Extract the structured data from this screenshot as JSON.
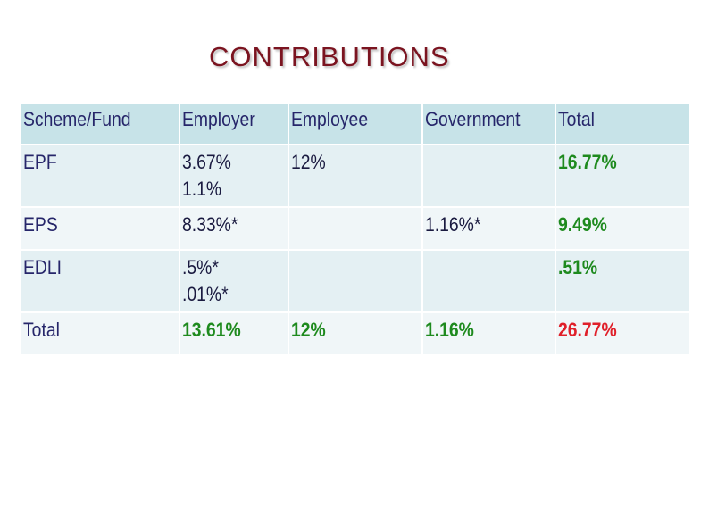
{
  "title": "CONTRIBUTIONS",
  "table": {
    "headers": [
      "Scheme/Fund",
      "Employer",
      "Employee",
      "Government",
      "Total"
    ],
    "rows": [
      {
        "scheme": "EPF",
        "employer": [
          "3.67%",
          "1.1%"
        ],
        "employee": "12%",
        "government": "",
        "total": "16.77%"
      },
      {
        "scheme": "EPS",
        "employer": [
          "8.33%*"
        ],
        "employee": "",
        "government": "1.16%*",
        "total": "9.49%"
      },
      {
        "scheme": "EDLI",
        "employer": [
          ".5%*",
          ".01%*"
        ],
        "employee": "",
        "government": "",
        "total": ".51%"
      },
      {
        "scheme": "Total",
        "employer": [
          "13.61%"
        ],
        "employee": "12%",
        "government": "1.16%",
        "total": "26.77%"
      }
    ]
  },
  "colors": {
    "title": "#7b1420",
    "header_bg": "#c7e3e8",
    "row_bg_odd": "#e4f0f3",
    "row_bg_even": "#f0f6f8",
    "total_green": "#1e8a1e",
    "grand_total_red": "#e0202a"
  }
}
